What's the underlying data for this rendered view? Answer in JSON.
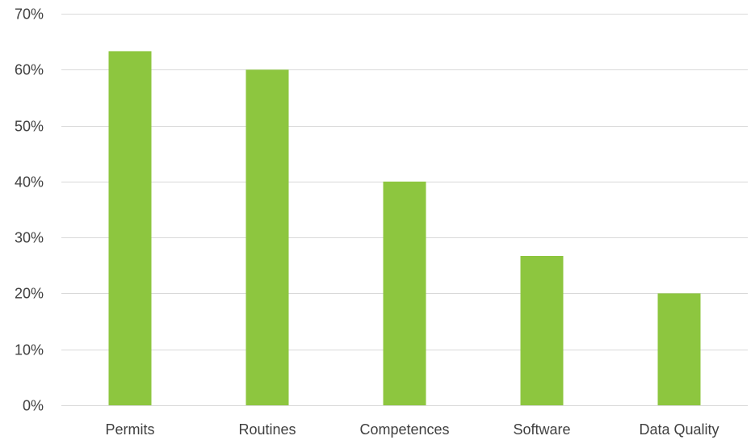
{
  "chart_data": {
    "type": "bar",
    "categories": [
      "Permits",
      "Routines",
      "Competences",
      "Software",
      "Data Quality"
    ],
    "values": [
      0.633,
      0.6,
      0.4,
      0.267,
      0.2
    ],
    "ylim": [
      0,
      0.7
    ],
    "yticks": [
      0,
      0.1,
      0.2,
      0.3,
      0.4,
      0.5,
      0.6,
      0.7
    ],
    "ytick_labels": [
      "0%",
      "10%",
      "20%",
      "30%",
      "40%",
      "50%",
      "60%",
      "70%"
    ],
    "bar_color": "#8DC63F",
    "grid_color": "#D9D9D9",
    "grid": true,
    "legend": "none"
  }
}
